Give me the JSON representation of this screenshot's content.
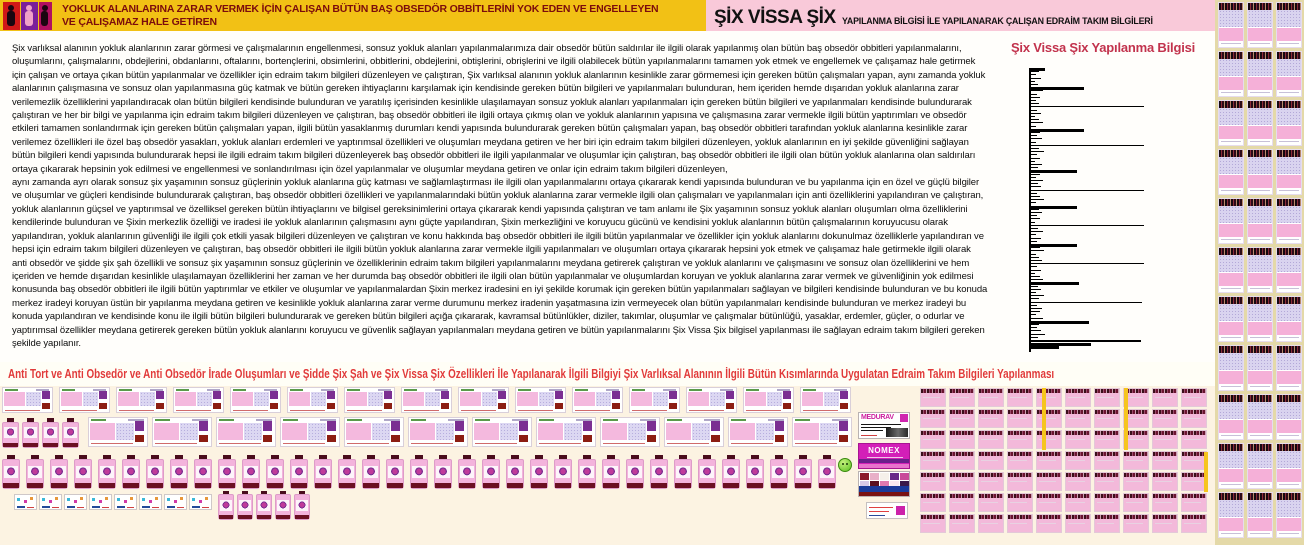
{
  "banner_left": {
    "line1": "YOKLUK ALANLARINA ZARAR VERMEK İÇİN ÇALIŞAN BÜTÜN BAŞ OBSEDÖR OBBİTLERİNİ YOK EDEN VE ENGELLEYEN",
    "line2": "VE ÇALIŞAMAZ HALE GETİREN"
  },
  "banner_right": {
    "title": "ŞİX VİSSA ŞİX",
    "subtitle": "YAPILANMA BİLGİSİ İLE YAPILANARAK ÇALIŞAN EDRAİM TAKIM BİLGİLERİ"
  },
  "body_text": {
    "paragraph1": "Şix varlıksal alanının yokluk alanlarının zarar görmesi ve çalışmalarının engellenmesi, sonsuz yokluk alanları yapılanmalarımıza dair obsedör bütün saldırılar ile ilgili olarak yapılanmış olan bütün baş obsedör obbitleri yapılanmalarını, oluşumlarını, çalışmalarını, obdejlerini, obdanlarını, oftalarını, bortençlerini, obsimlerini, obbitlerini, obdejlerini, obtişlerini, obrişlerini ve ilgili olabilecek bütün yapılanmalarını tamamen yok etmek ve engellemek ve çalışamaz hale getirmek için çalışan ve ortaya çıkan bütün yapılanmalar ve özellikler için edraim takım bilgileri düzenleyen ve çalıştıran, Şix varlıksal alanının yokluk alanlarının kesinlikle zarar görmemesi için gereken bütün çalışmaları yapan, aynı zamanda yokluk alanlarının çalışmasına ve sonsuz olan yapılanmasına güç katmak ve bütün gereken ihtiyaçlarını karşılamak için kendisinde gereken bütün bilgileri ve yapılanmaları bulunduran, hem içeriden hemde dışarıdan yokluk alanlarına zarar verilemezlik özelliklerini yapılandıracak olan bütün bilgileri kendisinde bulunduran ve yaratılış içerisinden kesinlikle ulaşılamayan sonsuz yokluk alanları yapılanmaları için gereken bütün bilgileri ve yapılanmaları kendisinde bulundurarak çalıştıran ve her bir bilgi ve yapılanma için edraim takım bilgileri düzenleyen ve çalıştıran, baş obsedör obbitleri ile ilgili ortaya çıkmış olan ve yokluk alanlarının yapısına ve çalışmasına zarar vermekle ilgili bütün yaptırımları ve obsedör etkileri tamamen sonlandırmak için gereken bütün çalışmaları yapan, ilgili bütün yasaklanmış durumları kendi yapısında bulundurarak gereken bütün çalışmaları yapan, baş obsedör obbitleri tarafından yokluk alanlarına kesinlikle zarar verilemez özellikleri ile özel baş obsedör yasakları, yokluk alanları erdemleri ve yaptırımsal özellikleri ve oluşumları meydana getiren ve her biri için edraim takım bilgileri düzenleyen, yokluk alanlarının en iyi şekilde güvenliğini sağlayan bütün bilgileri kendi yapısında bulundurarak hepsi ile ilgili edraim takım bilgileri düzenleyerek baş obsedör obbitleri ile ilgili yapılanmalar ve oluşumlar için çalıştıran, baş obsedör obbitleri ile ilgili olan bütün yokluk alanlarına olan saldırıları ortaya çıkararak hepsinin yok edilmesi ve engellenmesi ve sonlandırılması için özel yapılanmalar ve oluşumlar meydana getiren ve onlar için edraim takım bilgileri düzenleyen,",
    "paragraph2": "aynı zamanda ayrı olarak sonsuz şix yaşamının sonsuz güçlerinin yokluk alanlarına güç katması ve sağlamlaştırması ile ilgili olan yapılanmalarını ortaya çıkararak kendi yapısında bulunduran ve bu yapılanma için en özel ve güçlü bilgiler ve oluşumlar ve güçleri kendisinde bulundurarak çalıştıran, baş obsedör obbitleri özellikleri ve yapılanmalarındaki bütün yokluk alanlarına zarar vermekle ilgili olan çalışmaları ve yapılanmaları için anti özelliklerini yapılandıran ve çalıştıran, yokluk alanlarının güçsel ve yaptırımsal ve özelliksel gereken bütün ihtiyaçlarını ve bilgisel gereksinimlerini ortaya çıkararak kendi yapısında çalıştıran ve tam anlamı ile Şix yaşamının sonsuz yokluk alanları oluşumları olma özelliklerini kendilerinde bulunduran ve Şixin merkezlik özelliği ve iradesi ile yokluk alanlarının çalışmasını aynı güçte yapılandıran, Şixin merkezliğini ve koruyucu gücünü ve kendisini yokluk alanlarının bütün çalışmalarının koruyucusu olarak yapılandıran, yokluk alanlarının güvenliği ile ilgili çok etkili yasak bilgileri düzenleyen ve çalıştıran ve konu hakkında baş obsedör obbitleri ile ilgili bütün yapılanmalar ve özellikler için yokluk alanlarını dokunulmaz özelliklerle yapılandıran ve hepsi için edraim takım bilgileri düzenleyen ve çalıştıran, baş obsedör obbitleri ile ilgili bütün yokluk alanlarına zarar vermekle ilgili yapılanmaları ve oluşumları ortaya çıkararak hepsini yok etmek ve çalışamaz hale getirmekle ilgili olarak anti obsedör ve şidde şix şah özellikli ve sonsuz şix yaşamının sonsuz güçlerinin ve özelliklerinin edraim takım bilgileri yapılanmalarını meydana getirerek çalıştıran ve yokluk alanlarını ve çalışmasını ve sonsuz olan özelliklerini ve hem içeriden ve hemde dışarıdan kesinlikle ulaşılamayan özelliklerini her zaman ve her durumda baş obsedör obbitleri ile ilgili olan bütün yapılanmalar ve oluşumlardan koruyan ve yokluk alanlarına zarar vermek ve güvenliğinin yok edilmesi konusunda baş obsedör obbitleri ile ilgili bütün yaptırımlar ve etkiler ve oluşumlar ve yapılanmalardan Şixin merkez iradesini en iyi şekilde korumak için gereken bütün yapılanmaları sağlayan ve bilgileri kendisinde bulunduran ve bu konuda merkez iradeyi koruyan üstün bir yapılanma meydana getiren ve kesinlikle yokluk alanlarına zarar verme durumunu merkez iradenin yaşatmasına izin vermeyecek olan bütün yapılanmaları kendisinde bulunduran ve merkez iradeyi bu konuda yapılandıran ve kendisinde konu ile ilgili bütün bilgileri bulundurarak ve gereken bütün bilgileri açığa çıkararak, kavramsal bütünlükler, diziler, takımlar, oluşumlar ve çalışmalar bütünlüğü, yasaklar, erdemler, güçler, o odurlar ve yaptırımsal özellikler meydana getirerek gereken bütün yokluk alanlarını koruyucu ve güvenlik sağlayan yapılanmaları meydana getiren ve bütün yapılanmalarını Şix Vissa Şix bilgisel yapılanması ile sağlayan edraim takım bilgileri gereken şekilde yapılanır."
  },
  "chart": {
    "title": "Şix Vissa Şix Yapılanma Bilgisi",
    "bars": [
      [
        14,
        3
      ],
      [
        8,
        1
      ],
      [
        5,
        1
      ],
      [
        10,
        1
      ],
      [
        4,
        1
      ],
      [
        7,
        1
      ],
      [
        53,
        3
      ],
      [
        12,
        1
      ],
      [
        6,
        1
      ],
      [
        9,
        1
      ],
      [
        5,
        1
      ],
      [
        8,
        1
      ],
      [
        113,
        1
      ],
      [
        6,
        1
      ],
      [
        10,
        1
      ],
      [
        4,
        1
      ],
      [
        8,
        1
      ],
      [
        12,
        1
      ],
      [
        5,
        1
      ],
      [
        53,
        3
      ],
      [
        9,
        1
      ],
      [
        6,
        1
      ],
      [
        11,
        1
      ],
      [
        5,
        1
      ],
      [
        113,
        1
      ],
      [
        8,
        1
      ],
      [
        13,
        1
      ],
      [
        6,
        1
      ],
      [
        9,
        1
      ],
      [
        4,
        1
      ],
      [
        11,
        1
      ],
      [
        7,
        1
      ],
      [
        46,
        3
      ],
      [
        9,
        1
      ],
      [
        5,
        1
      ],
      [
        12,
        1
      ],
      [
        7,
        1
      ],
      [
        10,
        1
      ],
      [
        113,
        1
      ],
      [
        6,
        1
      ],
      [
        9,
        1
      ],
      [
        13,
        1
      ],
      [
        5,
        1
      ],
      [
        46,
        3
      ],
      [
        8,
        1
      ],
      [
        11,
        1
      ],
      [
        6,
        1
      ],
      [
        9,
        1
      ],
      [
        4,
        1
      ],
      [
        113,
        1
      ],
      [
        7,
        1
      ],
      [
        12,
        1
      ],
      [
        5,
        1
      ],
      [
        10,
        1
      ],
      [
        6,
        1
      ],
      [
        46,
        3
      ],
      [
        9,
        1
      ],
      [
        13,
        1
      ],
      [
        5,
        1
      ],
      [
        8,
        1
      ],
      [
        11,
        1
      ],
      [
        113,
        1
      ],
      [
        6,
        1
      ],
      [
        10,
        1
      ],
      [
        4,
        1
      ],
      [
        9,
        1
      ],
      [
        12,
        1
      ],
      [
        48,
        3
      ],
      [
        7,
        1
      ],
      [
        10,
        1
      ],
      [
        5,
        1
      ],
      [
        13,
        1
      ],
      [
        8,
        1
      ],
      [
        111,
        1
      ],
      [
        6,
        1
      ],
      [
        11,
        1
      ],
      [
        9,
        1
      ],
      [
        5,
        1
      ],
      [
        12,
        1
      ],
      [
        58,
        3
      ],
      [
        8,
        1
      ],
      [
        6,
        1
      ],
      [
        10,
        1
      ],
      [
        14,
        1
      ],
      [
        7,
        1
      ],
      [
        110,
        2
      ],
      [
        60,
        3
      ],
      [
        28,
        3
      ]
    ]
  },
  "bottom_title": "Anti Tort ve Anti Obsedör ve Anti Obsedör İrade Oluşumları ve Şidde Şix Şah ve Şix Vissa Şix Özellikleri İle Yapılanarak İlgili Bilgiyi Şix Varlıksal Alanının İlgili Bütün Kısımlarında Uygulatan Edraim Takım Bilgileri Yapılanması",
  "brands": {
    "medurav": "MEDURAV",
    "nomex": "NOMEX"
  },
  "collage": {
    "banner_cards_row1": 15,
    "bottles_row2": 4,
    "banner_cards_row2": 12,
    "bottles_row3": 35,
    "mini_cards_row4": 8,
    "bottles_row4": 5,
    "grid_cols": 10,
    "grid_rows": 7,
    "strip_cols": 3,
    "strip_rows": 11
  },
  "colors": {
    "banner_gold": "#f2c115",
    "banner_pink": "#f9c9d9",
    "banner_text": "#7b0c0c",
    "chart_title_red": "#c2334d",
    "bottom_title_red": "#e13a3a",
    "beige_background": "#e4d9a8",
    "ivory_background": "#fcf3e2",
    "thumb_pink": "#f3b3dc",
    "thumb_lavender": "#dcd7f2"
  }
}
